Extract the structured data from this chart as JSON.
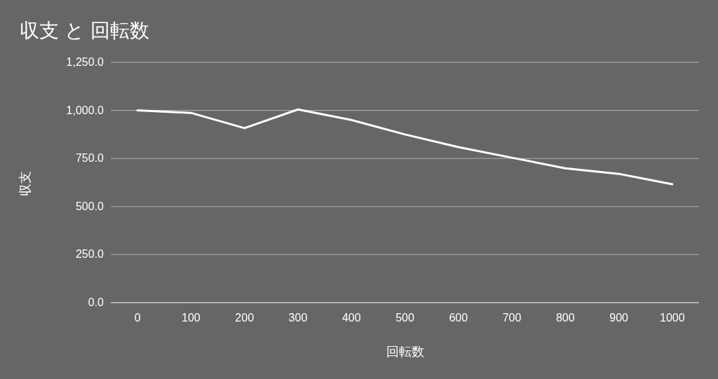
{
  "chart_data": {
    "type": "line",
    "title": "収支 と 回転数",
    "xlabel": "回転数",
    "ylabel": "収支",
    "categories": [
      "0",
      "100",
      "200",
      "300",
      "400",
      "500",
      "600",
      "700",
      "800",
      "900",
      "1000"
    ],
    "series": [
      {
        "color": "#ffffff",
        "values": [
          1000,
          987,
          908,
          1005,
          950,
          875,
          809,
          754,
          699,
          670,
          616
        ]
      }
    ],
    "ylim": [
      0,
      1250
    ],
    "yticks": [
      {
        "value": 0,
        "label": "0.0"
      },
      {
        "value": 250,
        "label": "250.0"
      },
      {
        "value": 500,
        "label": "500.0"
      },
      {
        "value": 750,
        "label": "750.0"
      },
      {
        "value": 1000,
        "label": "1,000.0"
      },
      {
        "value": 1250,
        "label": "1,250.0"
      }
    ],
    "grid": "y",
    "line_style": "solid"
  }
}
